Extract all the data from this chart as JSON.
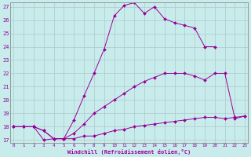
{
  "xlabel": "Windchill (Refroidissement éolien,°C)",
  "bg_color": "#c8ecec",
  "line_color": "#990099",
  "grid_color": "#b0c8c8",
  "xmin": 0,
  "xmax": 23,
  "ymin": 17,
  "ymax": 27,
  "hours": [
    0,
    1,
    2,
    3,
    4,
    5,
    6,
    7,
    8,
    9,
    10,
    11,
    12,
    13,
    14,
    15,
    16,
    17,
    18,
    19,
    20,
    21,
    22,
    23
  ],
  "curve1": [
    18.0,
    18.0,
    18.0,
    17.7,
    17.1,
    17.1,
    17.1,
    17.3,
    17.3,
    17.5,
    17.7,
    17.8,
    18.0,
    18.1,
    18.2,
    18.3,
    18.4,
    18.5,
    18.6,
    18.7,
    18.7,
    18.6,
    18.7,
    18.8
  ],
  "curve2": [
    18.0,
    18.0,
    18.0,
    17.7,
    17.1,
    17.1,
    17.5,
    18.2,
    19.0,
    19.5,
    20.0,
    20.5,
    21.0,
    21.4,
    21.7,
    22.0,
    22.0,
    22.0,
    21.8,
    21.5,
    22.0,
    22.0,
    18.6,
    18.8
  ],
  "curve3": [
    18.0,
    18.0,
    18.0,
    17.0,
    17.1,
    17.1,
    18.5,
    20.3,
    22.0,
    23.8,
    26.3,
    27.1,
    27.3,
    26.5,
    27.0,
    26.1,
    25.8,
    25.6,
    25.4,
    24.0,
    24.0,
    null,
    null,
    null
  ]
}
